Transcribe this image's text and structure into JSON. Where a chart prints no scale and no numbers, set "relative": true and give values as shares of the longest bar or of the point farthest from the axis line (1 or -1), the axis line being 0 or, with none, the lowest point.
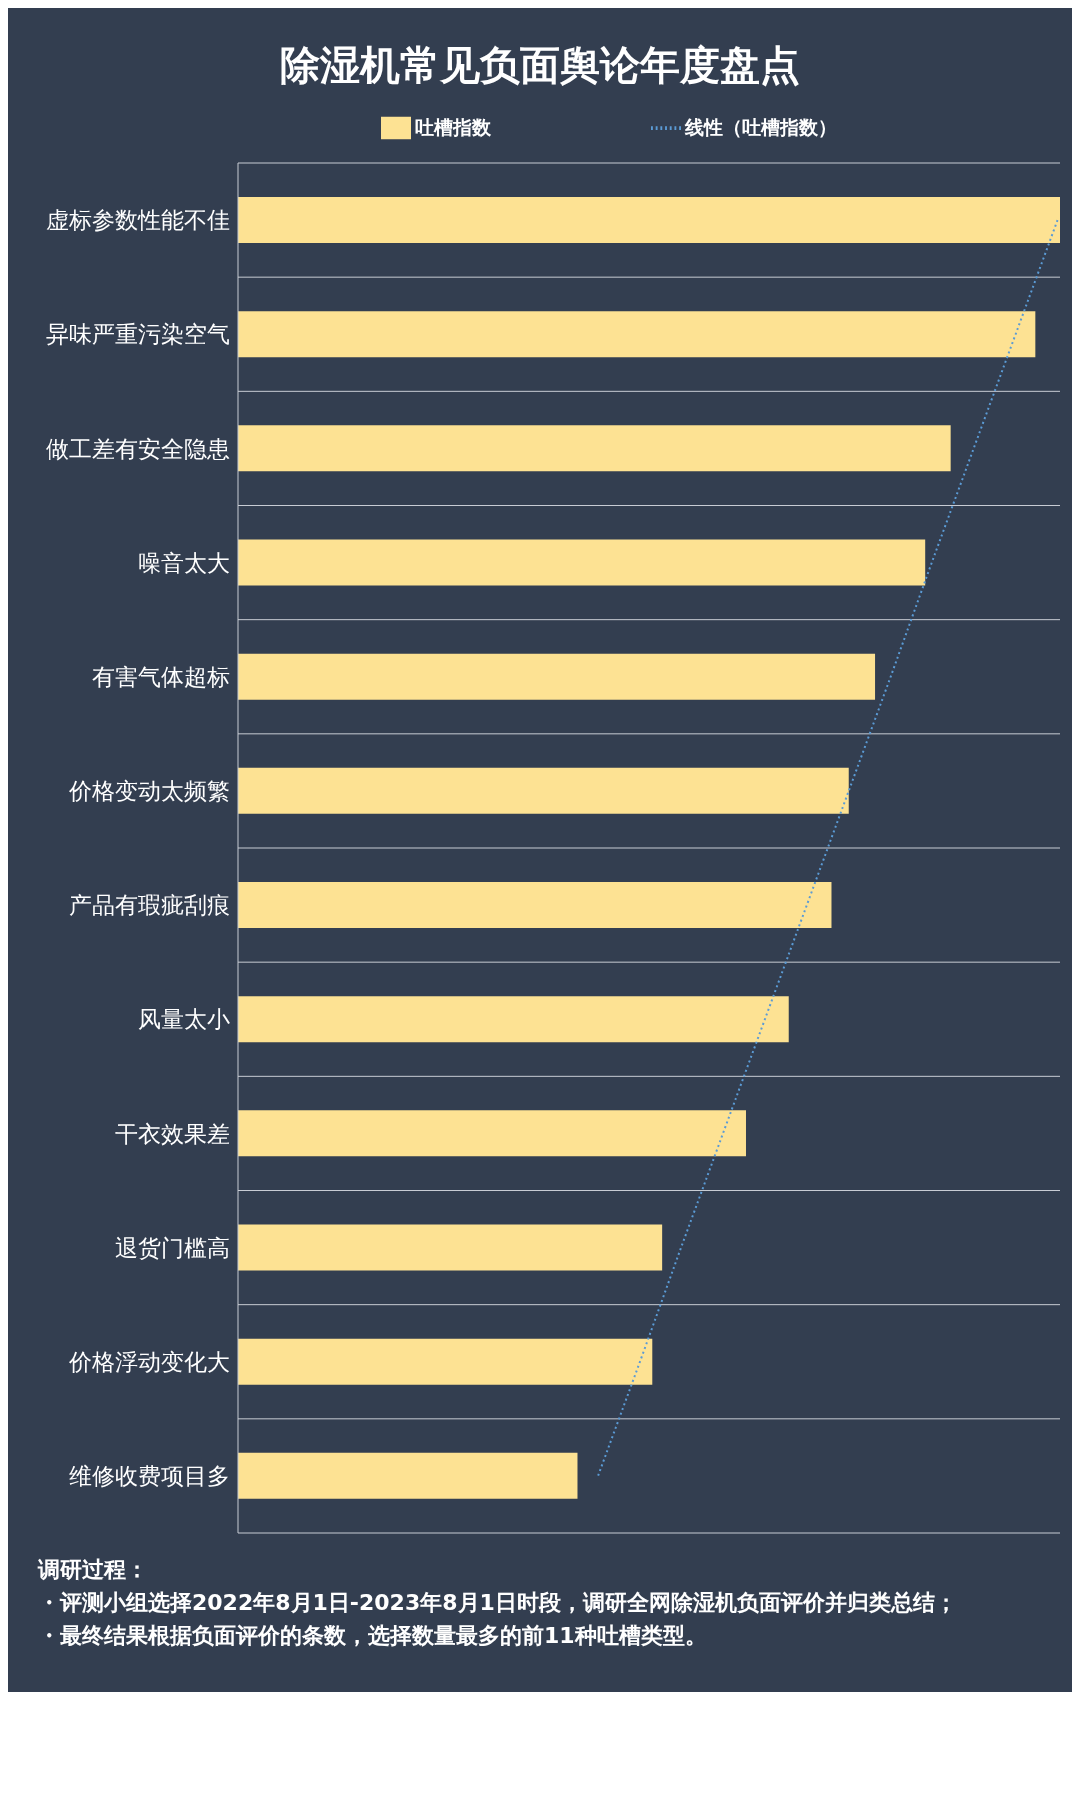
{
  "chart_data": {
    "type": "bar",
    "orientation": "horizontal",
    "relative": true,
    "title": "除湿机常见负面舆论年度盘点",
    "categories": [
      "虚标参数性能不佳",
      "异味严重污染空气",
      "做工差有安全隐患",
      "噪音太大",
      "有害气体超标",
      "价格变动太频繁",
      "产品有瑕疵刮痕",
      "风量太小",
      "干衣效果差",
      "退货门槛高",
      "价格浮动变化大",
      "维修收费项目多"
    ],
    "series": [
      {
        "name": "吐槽指数",
        "color": "#fde293",
        "values": [
          1,
          0.97,
          0.867,
          0.836,
          0.775,
          0.743,
          0.722,
          0.67,
          0.618,
          0.516,
          0.504,
          0.413
        ]
      },
      {
        "name": "线性（吐槽指数）",
        "type": "line",
        "line_style": "dotted",
        "color": "#5b9bd5",
        "values": [
          0.997,
          0.946,
          0.895,
          0.844,
          0.794,
          0.743,
          0.692,
          0.641,
          0.59,
          0.539,
          0.489,
          0.438
        ]
      }
    ],
    "legend": "top",
    "grid": "y",
    "annotations": [
      "调研过程：",
      "・评测小组选择2022年8月1日-2023年8月1日时段，调研全网除湿机负面评价并归类总结；",
      "・最终结果根据负面评价的条数，选择数量最多的前11种吐槽类型。"
    ]
  }
}
